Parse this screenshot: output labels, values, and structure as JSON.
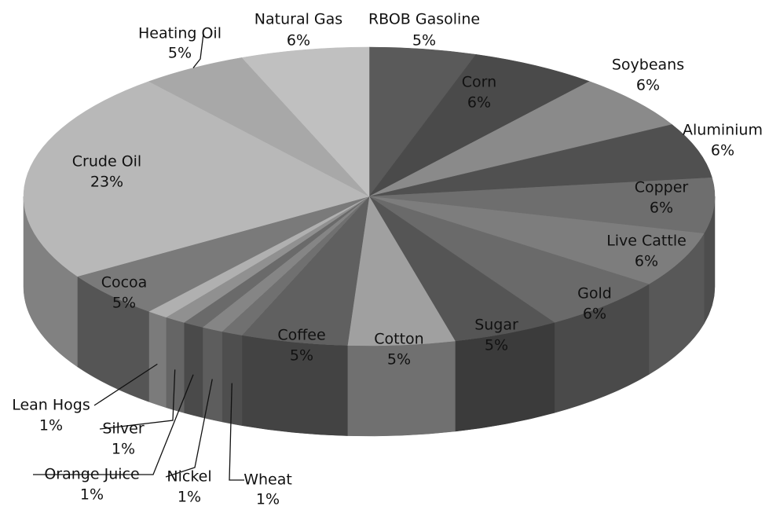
{
  "chart_data": {
    "type": "pie",
    "categories": [
      "RBOB Gasoline",
      "Corn",
      "Soybeans",
      "Aluminium",
      "Copper",
      "Live Cattle",
      "Gold",
      "Sugar",
      "Cotton",
      "Coffee",
      "Wheat",
      "Nickel",
      "Orange Juice",
      "Silver",
      "Lean Hogs",
      "Cocoa",
      "Crude Oil",
      "Heating Oil",
      "Natural Gas"
    ],
    "values": [
      5,
      6,
      6,
      6,
      6,
      6,
      6,
      5,
      5,
      5,
      1,
      1,
      1,
      1,
      1,
      5,
      23,
      5,
      6
    ],
    "value_labels": [
      "5%",
      "6%",
      "6%",
      "6%",
      "6%",
      "6%",
      "6%",
      "5%",
      "5%",
      "5%",
      "1%",
      "1%",
      "1%",
      "1%",
      "1%",
      "5%",
      "23%",
      "5%",
      "6%"
    ],
    "colors": [
      "#5a5a5a",
      "#4a4a4a",
      "#8a8a8a",
      "#505050",
      "#6e6e6e",
      "#7d7d7d",
      "#6a6a6a",
      "#555555",
      "#a0a0a0",
      "#606060",
      "#707070",
      "#858585",
      "#6a6a6a",
      "#909090",
      "#b0b0b0",
      "#7a7a7a",
      "#b8b8b8",
      "#a8a8a8",
      "#c0c0c0"
    ]
  }
}
